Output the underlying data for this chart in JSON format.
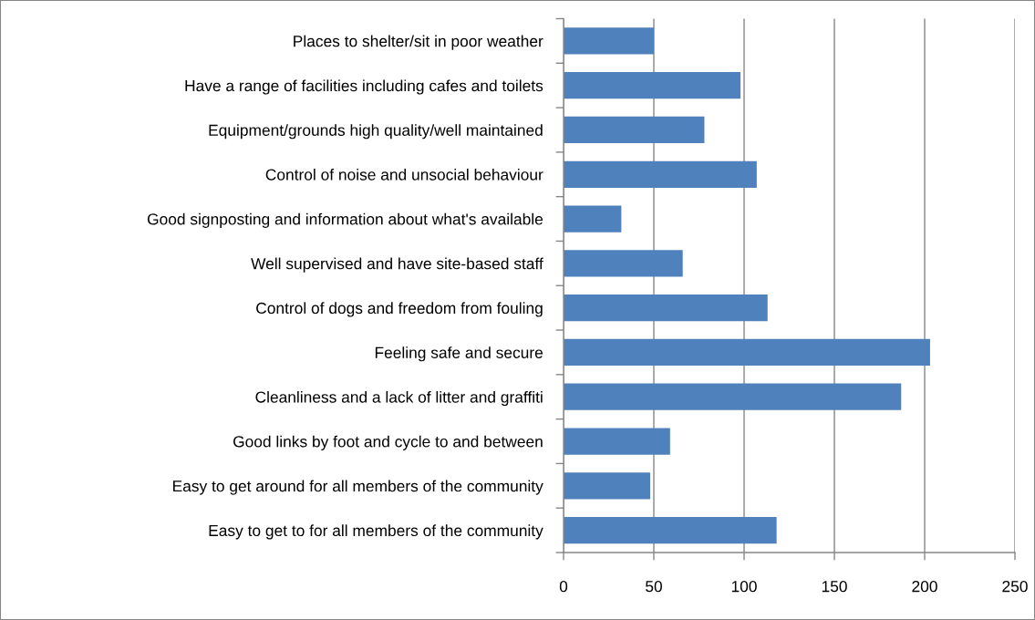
{
  "chart_data": {
    "type": "bar",
    "orientation": "horizontal",
    "categories": [
      "Places to shelter/sit in poor weather",
      "Have a range of facilities including cafes and toilets",
      "Equipment/grounds high quality/well maintained",
      "Control of noise and unsocial behaviour",
      "Good signposting and information about what's available",
      "Well supervised and have site-based staff",
      "Control of dogs and freedom from fouling",
      "Feeling safe and secure",
      "Cleanliness and a lack of litter and graffiti",
      "Good links by foot and cycle to and between",
      "Easy to get around for all members of the community",
      "Easy to get to for all members of the community"
    ],
    "values": [
      50,
      98,
      78,
      107,
      32,
      66,
      113,
      203,
      187,
      59,
      48,
      118
    ],
    "color": "#4f81bd",
    "xlim": [
      0,
      250
    ],
    "xticks": [
      0,
      50,
      100,
      150,
      200,
      250
    ],
    "grid": "x"
  }
}
